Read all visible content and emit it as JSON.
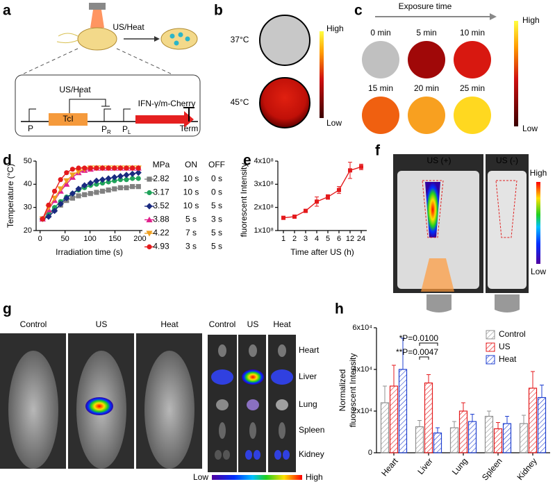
{
  "panels": {
    "a": {
      "letter": "a",
      "top_label": "US/Heat",
      "inhibit_label": "US/Heat",
      "promoter_p": "P",
      "gene": "TcI",
      "promoter_pr": {
        "main": "P",
        "sub": "R"
      },
      "promoter_pl": {
        "main": "P",
        "sub": "L"
      },
      "reporter": "IFN-γ/m-Cherry",
      "terminator": "Term"
    },
    "b": {
      "letter": "b",
      "conditions": [
        "37°C",
        "45°C"
      ],
      "scale_high": "High",
      "scale_low": "Low"
    },
    "c": {
      "letter": "c",
      "axis_label": "Exposure time",
      "times": [
        "0 min",
        "5 min",
        "10 min",
        "15 min",
        "20 min",
        "25 min"
      ],
      "scale_high": "High",
      "scale_low": "Low"
    },
    "f": {
      "letter": "f",
      "conditions": [
        "US (+)",
        "US (-)"
      ],
      "scale_high": "High",
      "scale_low": "Low"
    },
    "g": {
      "letter": "g",
      "mice": [
        "Control",
        "US",
        "Heat"
      ],
      "organ_groups": [
        "Control",
        "US",
        "Heat"
      ],
      "organs": [
        "Heart",
        "Liver",
        "Lung",
        "Spleen",
        "Kidney"
      ],
      "scale_low": "Low",
      "scale_high": "High"
    }
  },
  "chart_data": [
    {
      "type": "line",
      "letter": "d",
      "x_label": "Irradiation time (s)",
      "y_label": "Temperature (°C)",
      "legend_headers": [
        "MPa",
        "ON",
        "OFF"
      ],
      "x": [
        5,
        17,
        29,
        41,
        53,
        65,
        77,
        89,
        101,
        113,
        125,
        137,
        149,
        161,
        173,
        185,
        197
      ],
      "xlim": [
        -8,
        205
      ],
      "xticks": [
        0,
        50,
        100,
        150,
        200
      ],
      "ylim": [
        20,
        50
      ],
      "yticks": [
        20,
        30,
        40,
        50
      ],
      "series": [
        {
          "name": "2.82",
          "on": "10 s",
          "off": "0 s",
          "color": "#808080",
          "marker": "square",
          "values": [
            25,
            27,
            29,
            31,
            33,
            34,
            35,
            35.5,
            36,
            36.5,
            37,
            37.5,
            38,
            38.5,
            38.5,
            39,
            39
          ]
        },
        {
          "name": "3.17",
          "on": "10 s",
          "off": "0 s",
          "color": "#1fa35a",
          "marker": "circle",
          "values": [
            25,
            27,
            30,
            32.5,
            34.5,
            36,
            37.5,
            38.5,
            39.5,
            40,
            40.5,
            41,
            41.5,
            42,
            42,
            42.5,
            42.5
          ]
        },
        {
          "name": "3.52",
          "on": "10 s",
          "off": "5 s",
          "color": "#1a2a80",
          "marker": "diamond",
          "values": [
            25,
            26,
            28.5,
            31.5,
            34,
            36,
            38,
            39.5,
            40.5,
            41.5,
            42,
            42.5,
            43,
            43.5,
            44,
            44.5,
            45
          ]
        },
        {
          "name": "3.88",
          "on": "5 s",
          "off": "3 s",
          "color": "#e0208c",
          "marker": "triangle-up",
          "values": [
            25,
            29,
            33,
            37,
            40,
            43,
            45,
            46,
            46.5,
            47,
            47,
            47,
            47,
            47,
            47,
            47,
            47
          ]
        },
        {
          "name": "4.22",
          "on": "7 s",
          "off": "5 s",
          "color": "#f0a020",
          "marker": "triangle-down",
          "values": [
            25,
            30,
            34,
            38,
            41.5,
            44,
            45.5,
            46.5,
            47,
            47,
            47,
            47,
            47,
            47,
            47,
            47,
            47
          ]
        },
        {
          "name": "4.93",
          "on": "3 s",
          "off": "5 s",
          "color": "#e41a1c",
          "marker": "circle",
          "values": [
            25,
            31,
            37,
            42,
            45,
            46.5,
            47,
            47,
            47,
            47,
            47,
            47,
            47,
            47,
            47,
            47,
            47
          ]
        }
      ]
    },
    {
      "type": "errorline",
      "letter": "e",
      "x_label": "Time after US (h)",
      "y_label": "fluorescent Intensity",
      "categories": [
        "1",
        "2",
        "3",
        "4",
        "5",
        "6",
        "12",
        "24"
      ],
      "values": [
        155000000,
        160000000,
        185000000,
        225000000,
        245000000,
        275000000,
        360000000,
        375000000
      ],
      "errors": [
        5000000,
        5000000,
        7000000,
        20000000,
        10000000,
        15000000,
        35000000,
        12000000
      ],
      "color": "#e41a1c",
      "ylim": [
        100000000,
        400000000
      ],
      "yticks": [
        {
          "value": 100000000,
          "label": "1x10⁸"
        },
        {
          "value": 200000000,
          "label": "2x10⁸"
        },
        {
          "value": 300000000,
          "label": "3x10⁸"
        },
        {
          "value": 400000000,
          "label": "4x10⁸"
        }
      ]
    },
    {
      "type": "bar",
      "letter": "h",
      "y_label": [
        "Normalized",
        "fluorescent Intensity"
      ],
      "categories": [
        "Heart",
        "Liver",
        "Lung",
        "Spleen",
        "Kidney"
      ],
      "ylim": [
        0,
        60000
      ],
      "yticks": [
        0,
        {
          "value": 20000,
          "label": "2x10⁴"
        },
        {
          "value": 40000,
          "label": "4x10⁴"
        },
        {
          "value": 60000,
          "label": "6x10⁴"
        }
      ],
      "legend_position": "top-right",
      "annotations": [
        "*P=0.0100",
        "**P=0.0047"
      ],
      "series": [
        {
          "name": "Control",
          "color": "#909090",
          "values": [
            24000,
            12500,
            12000,
            17500,
            14000
          ],
          "errors": [
            8000,
            3000,
            3000,
            2500,
            4000
          ]
        },
        {
          "name": "US",
          "color": "#e41a1c",
          "values": [
            32000,
            33500,
            20000,
            11500,
            31000
          ],
          "errors": [
            10000,
            4000,
            4000,
            3000,
            8000
          ]
        },
        {
          "name": "Heat",
          "color": "#1f3fd0",
          "values": [
            40000,
            9500,
            15000,
            14000,
            26500
          ],
          "errors": [
            15000,
            2500,
            3500,
            3500,
            6000
          ]
        }
      ]
    }
  ]
}
